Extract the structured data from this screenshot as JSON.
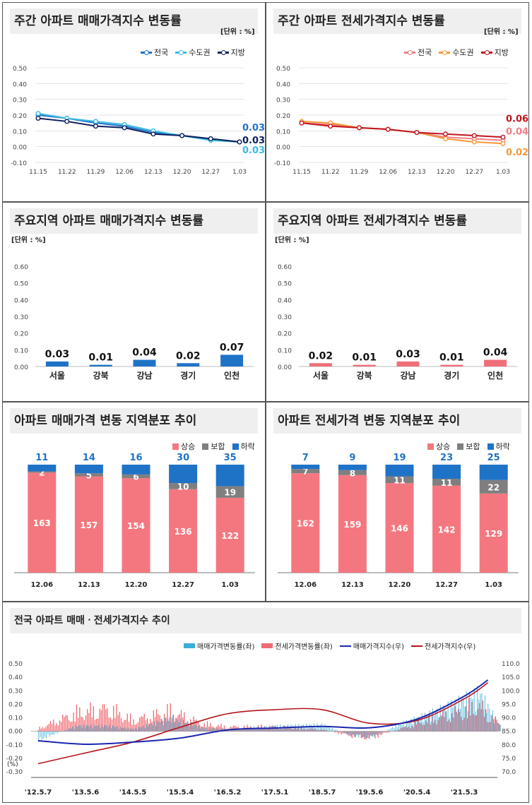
{
  "weekly_price": {
    "title": "주간 아파트 매매가격지수 변동률",
    "unit": "[단위 : %]",
    "chart_data": {
      "type": "line",
      "x": [
        "11.15",
        "11.22",
        "11.29",
        "12.06",
        "12.13",
        "12.20",
        "12.27",
        "1.03"
      ],
      "ylim": [
        -0.1,
        0.5
      ],
      "yticks": [
        "0.50",
        "0.40",
        "0.30",
        "0.20",
        "0.10",
        "0.00",
        "-0.10"
      ],
      "series": [
        {
          "name": "전국",
          "color": "#1f73c7",
          "values": [
            0.2,
            0.18,
            0.15,
            0.13,
            0.09,
            0.07,
            0.05,
            0.03
          ],
          "end_label": "0.03"
        },
        {
          "name": "수도권",
          "color": "#3bbbe6",
          "values": [
            0.21,
            0.18,
            0.16,
            0.14,
            0.1,
            0.07,
            0.04,
            0.03
          ],
          "end_label": "0.03"
        },
        {
          "name": "지방",
          "color": "#0b1f5e",
          "values": [
            0.18,
            0.16,
            0.13,
            0.12,
            0.08,
            0.07,
            0.05,
            0.03
          ],
          "end_label": "0.03"
        }
      ]
    }
  },
  "weekly_jeonse": {
    "title": "주간 아파트 전세가격지수 변동률",
    "unit": "[단위 : %]",
    "chart_data": {
      "type": "line",
      "x": [
        "11.15",
        "11.22",
        "11.29",
        "12.06",
        "12.13",
        "12.20",
        "12.27",
        "1.03"
      ],
      "ylim": [
        -0.1,
        0.5
      ],
      "yticks": [
        "0.50",
        "0.40",
        "0.30",
        "0.20",
        "0.10",
        "0.00",
        "-0.10"
      ],
      "series": [
        {
          "name": "전국",
          "color": "#ef7f86",
          "values": [
            0.15,
            0.14,
            0.12,
            0.11,
            0.09,
            0.06,
            0.05,
            0.04
          ],
          "end_label": "0.04"
        },
        {
          "name": "수도권",
          "color": "#f39a3a",
          "values": [
            0.16,
            0.15,
            0.12,
            0.11,
            0.09,
            0.05,
            0.03,
            0.02
          ],
          "end_label": "0.02"
        },
        {
          "name": "지방",
          "color": "#c0141d",
          "values": [
            0.15,
            0.13,
            0.12,
            0.11,
            0.09,
            0.08,
            0.07,
            0.06
          ],
          "end_label": "0.06"
        }
      ]
    }
  },
  "region_price": {
    "title": "주요지역 아파트 매매가격지수 변동률",
    "unit": "[단위 : %]",
    "chart_data": {
      "type": "bar",
      "categories": [
        "서울",
        "강북",
        "강남",
        "경기",
        "인천"
      ],
      "values": [
        0.03,
        0.01,
        0.04,
        0.02,
        0.07
      ],
      "labels": [
        "0.03",
        "0.01",
        "0.04",
        "0.02",
        "0.07"
      ],
      "ylim": [
        0,
        0.6
      ],
      "yticks": [
        "0.60",
        "0.50",
        "0.40",
        "0.30",
        "0.20",
        "0.10",
        "0.00"
      ],
      "color": "#1f73c7"
    }
  },
  "region_jeonse": {
    "title": "주요지역 아파트 전세가격지수 변동률",
    "unit": "[단위 : %]",
    "chart_data": {
      "type": "bar",
      "categories": [
        "서울",
        "강북",
        "강남",
        "경기",
        "인천"
      ],
      "values": [
        0.02,
        0.01,
        0.03,
        0.01,
        0.04
      ],
      "labels": [
        "0.02",
        "0.01",
        "0.03",
        "0.01",
        "0.04"
      ],
      "ylim": [
        0,
        0.6
      ],
      "yticks": [
        "0.60",
        "0.50",
        "0.40",
        "0.30",
        "0.20",
        "0.10",
        "0.00"
      ],
      "color": "#ef6f78"
    }
  },
  "dist_price": {
    "title": "아파트 매매가격 변동 지역분포 추이",
    "legend": [
      "상승",
      "보합",
      "하락"
    ],
    "chart_data": {
      "type": "bar",
      "stacked": true,
      "categories": [
        "12.06",
        "12.13",
        "12.20",
        "12.27",
        "1.03"
      ],
      "series": [
        {
          "name": "상승",
          "color": "#f4777f",
          "values": [
            163,
            157,
            154,
            136,
            122
          ]
        },
        {
          "name": "보합",
          "color": "#7f7f7f",
          "values": [
            2,
            5,
            6,
            10,
            19
          ]
        },
        {
          "name": "하락",
          "color": "#1f73c7",
          "values": [
            11,
            14,
            16,
            30,
            35
          ]
        }
      ]
    }
  },
  "dist_jeonse": {
    "title": "아파트 전세가격 변동 지역분포 추이",
    "legend": [
      "상승",
      "보합",
      "하락"
    ],
    "chart_data": {
      "type": "bar",
      "stacked": true,
      "categories": [
        "12.06",
        "12.13",
        "12.20",
        "12.27",
        "1.03"
      ],
      "series": [
        {
          "name": "상승",
          "color": "#f4777f",
          "values": [
            162,
            159,
            146,
            142,
            129
          ]
        },
        {
          "name": "보합",
          "color": "#7f7f7f",
          "values": [
            7,
            8,
            11,
            11,
            22
          ]
        },
        {
          "name": "하락",
          "color": "#1f73c7",
          "values": [
            7,
            9,
            19,
            23,
            25
          ]
        }
      ]
    }
  },
  "trend": {
    "title": "전국 아파트 매매ㆍ전세가격지수 추이",
    "legend": [
      "매매가격변동률(좌)",
      "전세가격변동률(좌)",
      "매매가격지수(우)",
      "전세가격지수(우)"
    ],
    "left_unit": "(%)",
    "chart_data": {
      "type": "bar",
      "x_ticks": [
        "'12.5.7",
        "'13.5.6",
        "'14.5.5",
        "'15.5.4",
        "'16.5.2",
        "'17.5.1",
        "'18.5.7",
        "'19.5.6",
        "'20.5.4",
        "'21.5.3"
      ],
      "left_ylim": [
        -0.3,
        0.5
      ],
      "left_yticks": [
        "0.50",
        "0.40",
        "0.30",
        "0.20",
        "0.10",
        "0.00",
        "-0.10",
        "-0.20",
        "-0.30"
      ],
      "right_ylim": [
        70.0,
        110.0
      ],
      "right_yticks": [
        "110.0",
        "105.0",
        "100.0",
        "95.0",
        "90.0",
        "85.0",
        "80.0",
        "75.0",
        "70.0"
      ],
      "colors": {
        "price_change": "#3aaed8",
        "jeonse_change": "#f06a72",
        "price_index": "#1c27b0",
        "jeonse_index": "#b4141c"
      },
      "price_index_points": [
        [
          0,
          81.5
        ],
        [
          1,
          80.2
        ],
        [
          2,
          81.0
        ],
        [
          3,
          82.5
        ],
        [
          4,
          85.5
        ],
        [
          5,
          86.2
        ],
        [
          6,
          86.8
        ],
        [
          7,
          86.3
        ],
        [
          8,
          89.5
        ],
        [
          9,
          98.0
        ],
        [
          9.5,
          104.0
        ]
      ],
      "jeonse_index_points": [
        [
          0,
          73.0
        ],
        [
          1,
          77.0
        ],
        [
          2,
          81.0
        ],
        [
          3,
          86.5
        ],
        [
          4,
          91.5
        ],
        [
          5,
          93.0
        ],
        [
          6,
          93.0
        ],
        [
          7,
          88.0
        ],
        [
          8,
          89.0
        ],
        [
          9,
          97.0
        ],
        [
          9.5,
          103.0
        ]
      ],
      "price_change_profile": [
        [
          0,
          -0.08
        ],
        [
          0.8,
          0.05
        ],
        [
          1.5,
          0.05
        ],
        [
          2,
          0.02
        ],
        [
          2.8,
          0.12
        ],
        [
          3.5,
          0.03
        ],
        [
          4,
          0.02
        ],
        [
          5,
          0.05
        ],
        [
          6,
          0.06
        ],
        [
          6.6,
          -0.04
        ],
        [
          7,
          -0.06
        ],
        [
          7.6,
          0.06
        ],
        [
          8.2,
          0.15
        ],
        [
          8.8,
          0.25
        ],
        [
          9.3,
          0.35
        ],
        [
          9.75,
          0.05
        ]
      ],
      "jeonse_change_profile": [
        [
          0,
          0.03
        ],
        [
          0.8,
          0.2
        ],
        [
          1.5,
          0.25
        ],
        [
          2,
          0.12
        ],
        [
          2.8,
          0.22
        ],
        [
          3.5,
          0.08
        ],
        [
          4,
          0.05
        ],
        [
          5,
          0.05
        ],
        [
          6,
          0.02
        ],
        [
          6.6,
          -0.05
        ],
        [
          7,
          -0.08
        ],
        [
          7.6,
          0.02
        ],
        [
          8.2,
          0.12
        ],
        [
          8.8,
          0.2
        ],
        [
          9.3,
          0.28
        ],
        [
          9.75,
          0.08
        ]
      ]
    }
  }
}
